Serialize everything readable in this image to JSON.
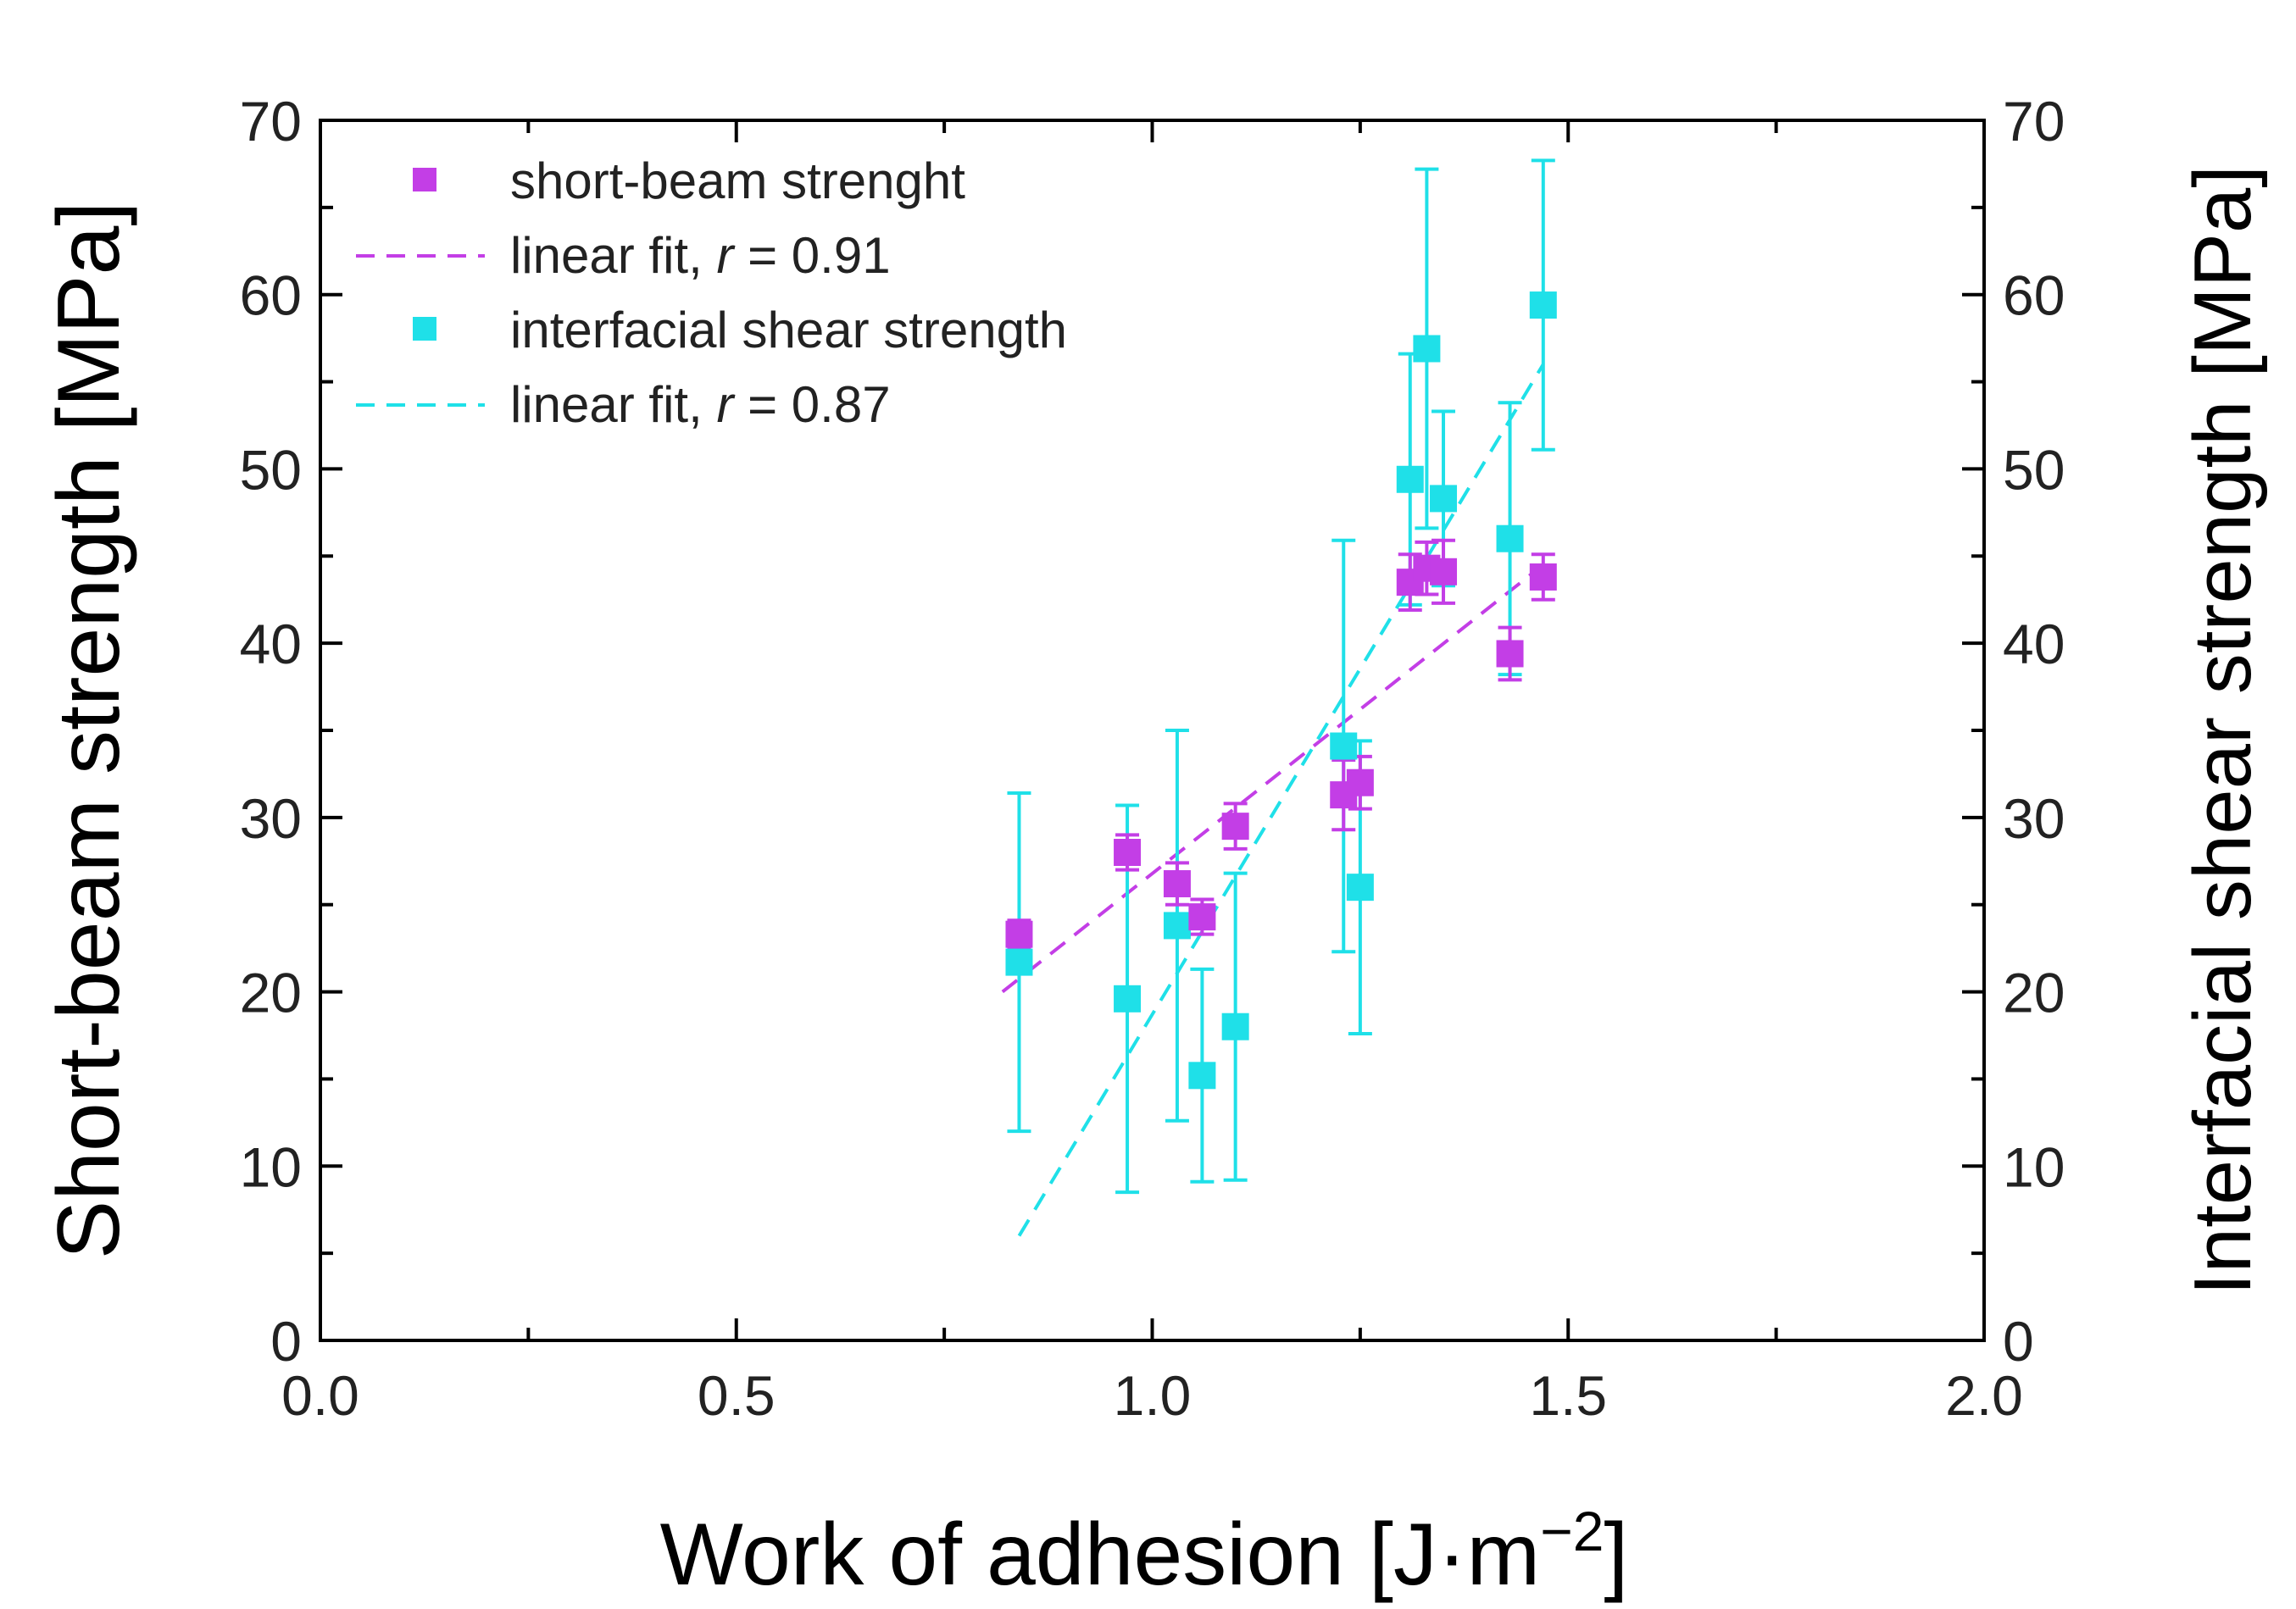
{
  "chart_data": {
    "type": "scatter",
    "xlabel": "Work of adhesion [J·m",
    "xlabel_sup": "−2",
    "xlabel_end": "]",
    "ylabel_left": "Short-beam strength [MPa]",
    "ylabel_right": "Interfacial shear strength [MPa]",
    "xlim": [
      0.0,
      2.0
    ],
    "ylim": [
      0,
      70
    ],
    "x_ticks": [
      "0.0",
      "0.5",
      "1.0",
      "1.5",
      "2.0"
    ],
    "y_ticks": [
      "0",
      "10",
      "20",
      "30",
      "40",
      "50",
      "60",
      "70"
    ],
    "grid": false,
    "legend_position": "top-left",
    "legend": {
      "sbs": "short-beam strenght",
      "sbs_fit_prefix": "linear fit, ",
      "sbs_fit_r": "r",
      "sbs_fit_value": " = 0.91",
      "ifss": "interfacial shear strength",
      "ifss_fit_prefix": "linear fit, ",
      "ifss_fit_r": "r",
      "ifss_fit_value": " = 0.87"
    },
    "series": [
      {
        "name": "short-beam strenght",
        "color": "#c33ee6",
        "points": [
          {
            "x": 0.84,
            "y": 23.3,
            "err": 0.8
          },
          {
            "x": 0.97,
            "y": 28.0,
            "err": 1.0
          },
          {
            "x": 1.03,
            "y": 26.2,
            "err": 1.2
          },
          {
            "x": 1.06,
            "y": 24.3,
            "err": 1.0
          },
          {
            "x": 1.1,
            "y": 29.5,
            "err": 1.3
          },
          {
            "x": 1.23,
            "y": 31.3,
            "err": 2.0
          },
          {
            "x": 1.25,
            "y": 32.0,
            "err": 1.5
          },
          {
            "x": 1.31,
            "y": 43.5,
            "err": 1.6
          },
          {
            "x": 1.33,
            "y": 44.3,
            "err": 1.5
          },
          {
            "x": 1.35,
            "y": 44.1,
            "err": 1.8
          },
          {
            "x": 1.43,
            "y": 39.4,
            "err": 1.5
          },
          {
            "x": 1.47,
            "y": 43.8,
            "err": 1.3
          }
        ],
        "fit": {
          "label": "linear fit, r = 0.91",
          "x": [
            0.82,
            1.47
          ],
          "y": [
            20.0,
            44.5
          ]
        }
      },
      {
        "name": "interfacial shear strength",
        "color": "#1fe0e8",
        "points": [
          {
            "x": 0.84,
            "y": 21.7,
            "err": 9.7
          },
          {
            "x": 0.97,
            "y": 19.6,
            "err": 11.1
          },
          {
            "x": 1.03,
            "y": 23.8,
            "err": 11.2
          },
          {
            "x": 1.06,
            "y": 15.2,
            "err": 6.1
          },
          {
            "x": 1.1,
            "y": 18.0,
            "err": 8.8
          },
          {
            "x": 1.23,
            "y": 34.1,
            "err": 11.8
          },
          {
            "x": 1.25,
            "y": 26.0,
            "err": 8.4
          },
          {
            "x": 1.31,
            "y": 49.4,
            "err": 7.2
          },
          {
            "x": 1.33,
            "y": 56.9,
            "err": 10.3
          },
          {
            "x": 1.35,
            "y": 48.3,
            "err": 5.0
          },
          {
            "x": 1.43,
            "y": 46.0,
            "err": 7.8
          },
          {
            "x": 1.47,
            "y": 59.4,
            "err": 8.3
          }
        ],
        "fit": {
          "label": "linear fit, r = 0.87",
          "x": [
            0.84,
            1.47
          ],
          "y": [
            6.0,
            56.0
          ]
        }
      }
    ]
  }
}
